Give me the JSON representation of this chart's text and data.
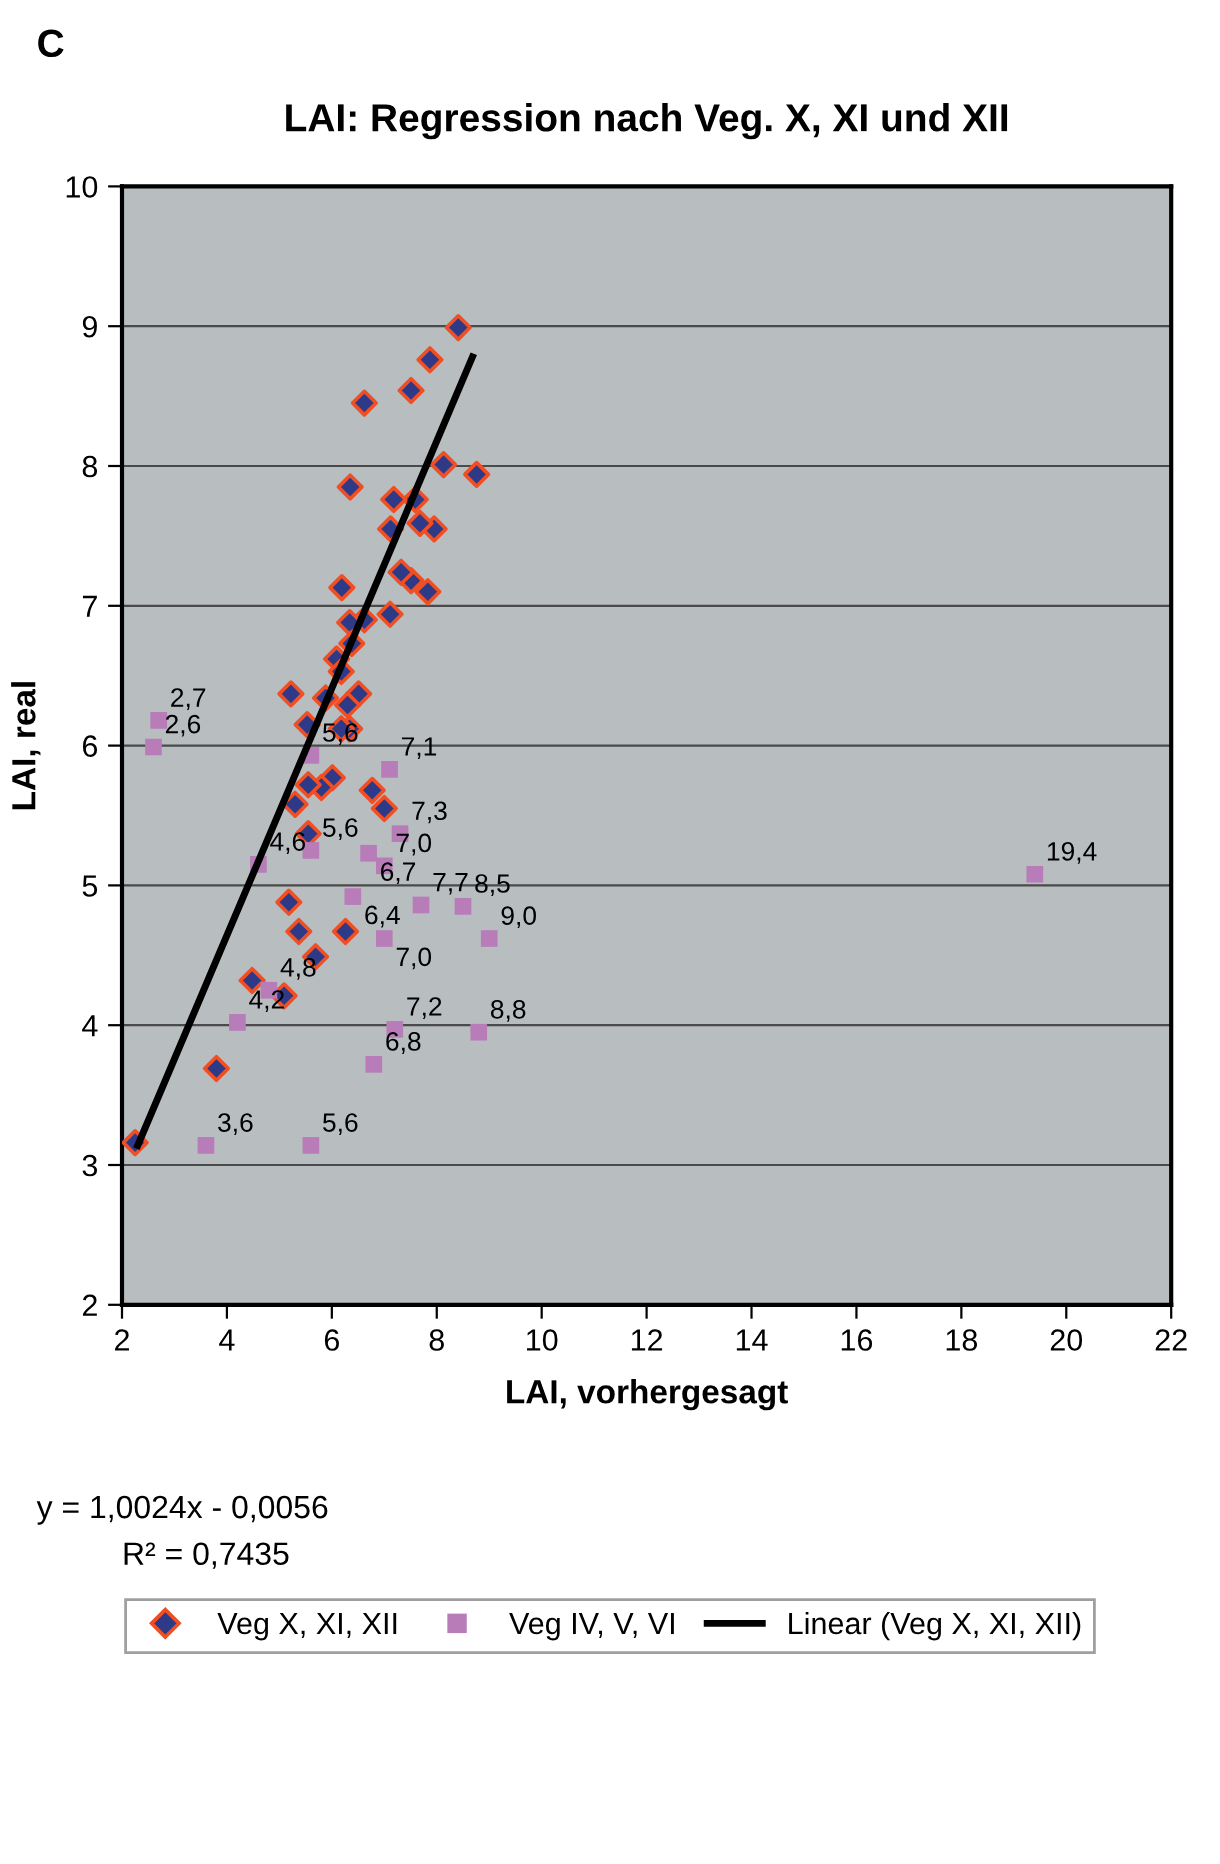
{
  "chart_data": {
    "type": "scatter",
    "title": "LAI: Regression nach Veg. X, XI und XII",
    "xlabel": "LAI, vorhergesagt",
    "ylabel": "LAI, real",
    "xlim": [
      2,
      22
    ],
    "xticks": [
      2,
      4,
      6,
      8,
      10,
      12,
      14,
      16,
      18,
      20,
      22
    ],
    "ylim": [
      2,
      10
    ],
    "yticks": [
      2,
      3,
      4,
      5,
      6,
      7,
      8,
      9,
      10
    ],
    "grid": "y",
    "legend": "bottom",
    "annotations": [
      "C",
      "y = 1,0024x - 0,0056",
      "R² = 0,7435",
      {
        "text": "2,7",
        "x": 2.7,
        "y": 6.18
      },
      {
        "text": "2,6",
        "x": 2.6,
        "y": 5.99
      },
      {
        "text": "7,1",
        "x": 7.1,
        "y": 5.83
      },
      {
        "text": "7,3",
        "x": 7.3,
        "y": 5.37
      },
      {
        "text": "7,0",
        "x": 7.0,
        "y": 5.14
      },
      {
        "text": "6,7",
        "x": 6.7,
        "y": 5.23
      },
      {
        "text": "6,4",
        "x": 6.4,
        "y": 4.92
      },
      {
        "text": "5,6",
        "x": 5.6,
        "y": 5.93
      },
      {
        "text": "5,6",
        "x": 5.6,
        "y": 5.25
      },
      {
        "text": "4,6",
        "x": 4.6,
        "y": 5.15
      },
      {
        "text": "8,5",
        "x": 8.5,
        "y": 4.85
      },
      {
        "text": "7,7",
        "x": 7.7,
        "y": 4.86
      },
      {
        "text": "7,0",
        "x": 7.0,
        "y": 4.62
      },
      {
        "text": "9,0",
        "x": 9.0,
        "y": 4.62
      },
      {
        "text": "4,8",
        "x": 4.8,
        "y": 4.25
      },
      {
        "text": "4,2",
        "x": 4.2,
        "y": 4.02
      },
      {
        "text": "8,8",
        "x": 8.8,
        "y": 3.95
      },
      {
        "text": "7,2",
        "x": 7.2,
        "y": 3.97
      },
      {
        "text": "6,8",
        "x": 6.8,
        "y": 3.72
      },
      {
        "text": "5,6",
        "x": 5.6,
        "y": 3.14
      },
      {
        "text": "3,6",
        "x": 3.6,
        "y": 3.14
      },
      {
        "text": "19,4",
        "x": 19.4,
        "y": 5.08
      }
    ],
    "series": [
      {
        "name": "Veg X, XI, XII",
        "marker": "diamond",
        "color": "#2e3a87",
        "x": [
          8.41,
          8.76,
          7.87,
          7.51,
          8.13,
          7.95,
          7.59,
          7.68,
          7.83,
          7.51,
          7.32,
          7.18,
          7.12,
          7.11,
          6.62,
          6.35,
          6.19,
          6.62,
          6.34,
          6.38,
          6.09,
          6.18,
          6.51,
          6.3,
          6.34,
          6.18,
          5.88,
          5.53,
          5.22,
          6.01,
          5.8,
          5.55,
          5.3,
          5.55,
          7.0,
          6.77,
          5.18,
          5.37,
          6.26,
          5.69,
          5.09,
          4.48,
          3.8,
          2.25
        ],
        "values": [
          8.99,
          7.94,
          8.76,
          8.54,
          8.01,
          7.55,
          7.76,
          7.59,
          7.1,
          7.18,
          7.24,
          7.76,
          7.55,
          6.94,
          8.45,
          7.85,
          7.13,
          6.9,
          6.88,
          6.73,
          6.62,
          6.53,
          6.37,
          6.29,
          6.12,
          6.12,
          6.34,
          6.15,
          6.37,
          5.77,
          5.7,
          5.72,
          5.58,
          5.37,
          5.55,
          5.68,
          4.88,
          4.67,
          4.67,
          4.49,
          4.21,
          4.32,
          3.69,
          3.16
        ]
      },
      {
        "name": "Veg IV, V, VI",
        "marker": "square",
        "color": "#b87cb8",
        "x": [
          2.7,
          2.6,
          7.1,
          7.3,
          7.0,
          6.7,
          6.4,
          5.6,
          5.6,
          4.6,
          8.5,
          7.7,
          7.0,
          9.0,
          4.8,
          4.2,
          8.8,
          7.2,
          6.8,
          5.6,
          3.6,
          19.4
        ],
        "values": [
          6.18,
          5.99,
          5.83,
          5.37,
          5.14,
          5.23,
          4.92,
          5.93,
          5.25,
          5.15,
          4.85,
          4.86,
          4.62,
          4.62,
          4.25,
          4.02,
          3.95,
          3.97,
          3.72,
          3.14,
          3.14,
          5.08
        ]
      },
      {
        "name": "Linear (Veg X, XI, XII)",
        "type": "line",
        "marker": "none",
        "line_style": "solid",
        "color": "#000000",
        "x": [
          2.3,
          8.68
        ],
        "values": [
          3.14,
          8.78
        ]
      }
    ]
  }
}
